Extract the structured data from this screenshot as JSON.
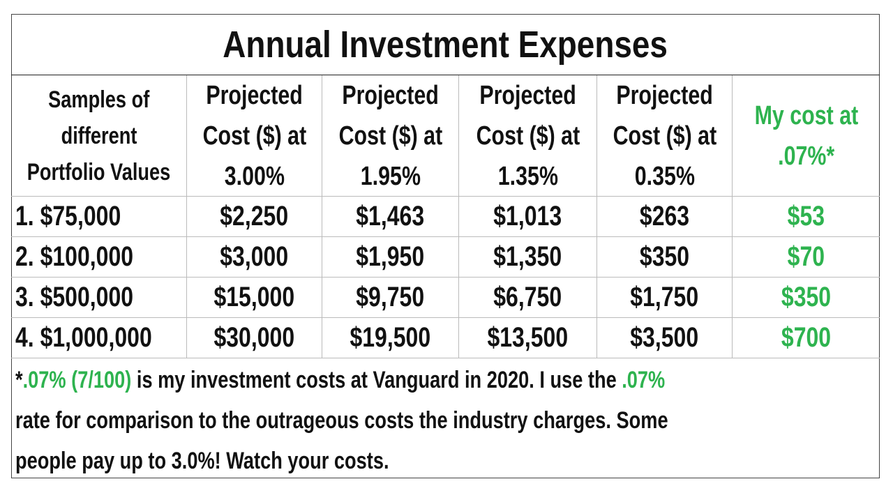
{
  "header": {
    "title": "Annual Investment Expenses"
  },
  "table": {
    "columns": [
      [
        "Samples of",
        "different",
        "Portfolio Values"
      ],
      [
        "Projected",
        "Cost ($) at",
        "3.00%"
      ],
      [
        "Projected",
        "Cost ($) at",
        "1.95%"
      ],
      [
        "Projected",
        "Cost ($) at",
        "1.35%"
      ],
      [
        "Projected",
        "Cost ($) at",
        "0.35%"
      ],
      [
        "My cost at",
        ".07%*"
      ]
    ],
    "rows": [
      [
        "1. $75,000",
        "$2,250",
        "$1,463",
        "$1,013",
        "$263",
        "$53"
      ],
      [
        "2. $100,000",
        "$3,000",
        "$1,950",
        "$1,350",
        "$350",
        "$70"
      ],
      [
        "3. $500,000",
        "$15,000",
        "$9,750",
        "$6,750",
        "$1,750",
        "$350"
      ],
      [
        "4. $1,000,000",
        "$30,000",
        "$19,500",
        "$13,500",
        "$3,500",
        "$700"
      ]
    ]
  },
  "footnote": {
    "lines": [
      [
        {
          "text": "*"
        },
        {
          "text": ".07% (7/100)",
          "highlight": true
        },
        {
          "text": " is my investment costs at Vanguard in 2020. I use the "
        },
        {
          "text": ".07%",
          "highlight": true
        }
      ],
      [
        {
          "text": "rate for comparison to the outrageous costs the industry charges. Some"
        }
      ],
      [
        {
          "text": "people pay up to 3.0%! Watch your costs."
        }
      ]
    ]
  }
}
